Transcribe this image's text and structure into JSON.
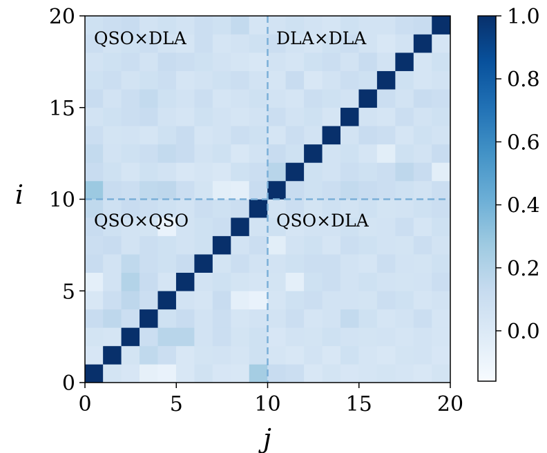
{
  "chart_data": {
    "type": "heatmap",
    "title": "",
    "xlabel": "j",
    "ylabel": "i",
    "xlim": [
      0,
      20
    ],
    "ylim": [
      0,
      20
    ],
    "xticks": [
      "0",
      "5",
      "10",
      "15",
      "20"
    ],
    "yticks": [
      "0",
      "5",
      "10",
      "15",
      "20"
    ],
    "colormap": "Blues",
    "color_range": [
      -0.16,
      1.0
    ],
    "colorbar_ticks": [
      "0.0",
      "0.2",
      "0.4",
      "0.6",
      "0.8",
      "1.0"
    ],
    "colorbar_tick_values": [
      0.0,
      0.2,
      0.4,
      0.6,
      0.8,
      1.0
    ],
    "divider_lines": {
      "x": 10,
      "y": 10,
      "style": "dashed",
      "color": "#7bafd8"
    },
    "quadrant_labels": {
      "top_left": "QSO×DLA",
      "top_right": "DLA×DLA",
      "bottom_left": "QSO×QSO",
      "bottom_right": "QSO×DLA"
    },
    "rows_note_order": "row index = i from 0 (bottom) to 19 (top); column index = j from 0 (left) to 19 (right)",
    "matrix": [
      [
        1.0,
        0.05,
        0.03,
        -0.06,
        -0.08,
        0.02,
        0.07,
        0.03,
        0.02,
        0.25,
        0.12,
        0.1,
        0.02,
        0.05,
        0.03,
        0.04,
        0.05,
        0.04,
        0.02,
        0.05
      ],
      [
        0.03,
        1.0,
        0.05,
        0.15,
        0.1,
        0.02,
        0.05,
        0.06,
        0.04,
        0.08,
        0.04,
        0.02,
        0.06,
        0.02,
        0.08,
        0.04,
        0.02,
        0.05,
        0.06,
        0.03
      ],
      [
        0.05,
        0.04,
        1.0,
        0.1,
        0.18,
        0.18,
        0.06,
        0.1,
        0.05,
        0.08,
        0.03,
        0.06,
        0.05,
        0.08,
        0.06,
        0.05,
        0.06,
        0.04,
        0.06,
        0.04
      ],
      [
        0.12,
        0.16,
        0.1,
        1.0,
        0.08,
        0.12,
        0.06,
        0.1,
        0.04,
        0.06,
        0.06,
        0.1,
        0.04,
        0.06,
        0.14,
        0.08,
        0.04,
        0.06,
        0.1,
        0.04
      ],
      [
        0.02,
        0.1,
        0.16,
        0.1,
        1.0,
        0.06,
        0.04,
        0.12,
        -0.05,
        -0.08,
        0.04,
        0.08,
        0.1,
        0.06,
        0.06,
        0.05,
        0.1,
        0.08,
        0.04,
        0.06
      ],
      [
        -0.05,
        0.06,
        0.2,
        0.12,
        0.04,
        1.0,
        0.06,
        0.08,
        0.05,
        0.04,
        0.05,
        -0.05,
        0.08,
        0.1,
        0.06,
        0.08,
        0.06,
        0.05,
        0.06,
        0.1
      ],
      [
        0.12,
        0.06,
        0.15,
        0.1,
        0.08,
        0.12,
        1.0,
        0.05,
        0.1,
        0.06,
        0.06,
        0.08,
        0.1,
        0.1,
        0.06,
        0.04,
        0.1,
        0.06,
        0.05,
        0.08
      ],
      [
        0.1,
        0.12,
        0.06,
        0.1,
        0.08,
        0.06,
        0.08,
        1.0,
        0.06,
        0.1,
        -0.04,
        0.06,
        0.08,
        0.04,
        0.1,
        0.08,
        0.06,
        0.05,
        0.1,
        0.06
      ],
      [
        0.12,
        0.08,
        0.06,
        0.05,
        -0.08,
        0.06,
        0.08,
        0.1,
        1.0,
        0.06,
        0.08,
        0.04,
        0.06,
        0.06,
        0.08,
        0.05,
        0.06,
        0.1,
        0.04,
        0.08
      ],
      [
        0.15,
        0.08,
        0.12,
        0.1,
        0.08,
        0.06,
        0.1,
        0.08,
        0.1,
        1.0,
        0.06,
        0.1,
        0.05,
        0.08,
        0.06,
        0.08,
        0.05,
        0.06,
        0.08,
        0.1
      ],
      [
        0.28,
        0.12,
        0.1,
        0.15,
        0.16,
        0.1,
        0.05,
        -0.04,
        -0.05,
        0.12,
        1.0,
        0.12,
        0.08,
        0.1,
        0.14,
        0.12,
        0.1,
        0.08,
        0.06,
        0.1
      ],
      [
        0.12,
        0.08,
        0.04,
        0.08,
        0.06,
        0.02,
        0.04,
        0.02,
        0.08,
        0.1,
        0.18,
        1.0,
        0.08,
        0.06,
        0.1,
        0.08,
        0.1,
        0.16,
        0.12,
        -0.04
      ],
      [
        0.14,
        0.06,
        0.08,
        0.1,
        0.14,
        0.12,
        0.06,
        0.08,
        0.02,
        0.06,
        0.12,
        0.08,
        1.0,
        0.06,
        0.08,
        0.04,
        -0.04,
        0.08,
        0.06,
        0.12
      ],
      [
        0.1,
        0.05,
        0.06,
        0.04,
        0.08,
        0.12,
        0.04,
        0.06,
        0.1,
        0.08,
        0.04,
        0.1,
        0.06,
        1.0,
        0.06,
        0.12,
        0.1,
        0.04,
        0.08,
        0.06
      ],
      [
        0.06,
        0.08,
        0.1,
        0.12,
        0.06,
        0.04,
        0.08,
        0.06,
        0.04,
        0.06,
        0.1,
        0.06,
        0.08,
        0.04,
        1.0,
        0.06,
        0.04,
        0.1,
        0.06,
        0.08
      ],
      [
        0.12,
        0.06,
        0.1,
        0.14,
        0.08,
        0.06,
        0.1,
        0.04,
        0.06,
        0.08,
        0.06,
        0.04,
        0.1,
        0.08,
        0.06,
        1.0,
        0.1,
        0.06,
        0.12,
        0.1
      ],
      [
        0.08,
        0.1,
        0.06,
        0.08,
        0.1,
        0.04,
        0.06,
        0.08,
        0.1,
        0.06,
        0.04,
        0.12,
        0.02,
        0.06,
        0.1,
        0.08,
        1.0,
        0.08,
        0.04,
        0.06
      ],
      [
        0.06,
        0.08,
        0.1,
        0.06,
        0.12,
        0.1,
        0.08,
        0.06,
        0.04,
        0.02,
        0.06,
        0.04,
        0.08,
        0.1,
        0.06,
        0.12,
        0.06,
        1.0,
        0.04,
        0.08
      ],
      [
        0.1,
        0.06,
        0.08,
        0.1,
        0.06,
        0.04,
        0.1,
        0.04,
        0.06,
        0.08,
        0.1,
        0.06,
        0.04,
        0.08,
        0.1,
        0.06,
        0.02,
        0.06,
        1.0,
        0.04
      ],
      [
        0.08,
        0.1,
        0.12,
        0.06,
        0.08,
        0.06,
        0.1,
        0.08,
        0.14,
        0.04,
        0.06,
        0.08,
        0.06,
        0.04,
        0.08,
        0.06,
        0.06,
        0.1,
        0.12,
        1.0
      ]
    ]
  }
}
